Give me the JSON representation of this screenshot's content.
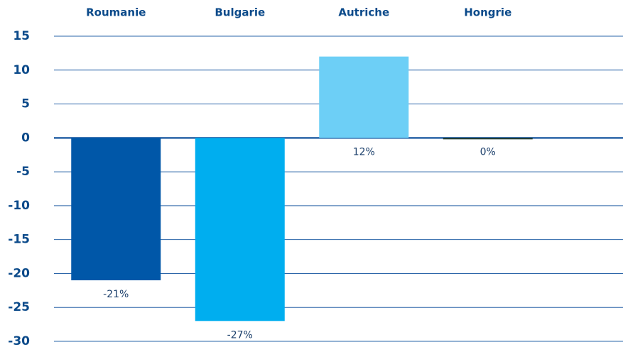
{
  "chart_data": {
    "type": "bar",
    "categories": [
      "Roumanie",
      "Bulgarie",
      "Autriche",
      "Hongrie"
    ],
    "values": [
      -21,
      -27,
      12,
      0
    ],
    "value_labels": [
      "-21%",
      "-27%",
      "12%",
      "0%"
    ],
    "colors": [
      "#0057a8",
      "#00aeef",
      "#6dcff6",
      "#1f3b2c"
    ],
    "ylim": [
      -30,
      15
    ],
    "yticks": [
      -30,
      -25,
      -20,
      -15,
      -10,
      -5,
      0,
      5,
      10,
      15
    ],
    "grid": true
  }
}
